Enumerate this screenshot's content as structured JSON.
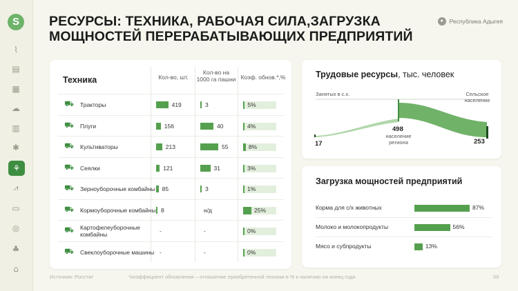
{
  "sidebar": {
    "logo": "S",
    "icons": [
      "map-icon",
      "layout-icon",
      "grid-icon",
      "weather-icon",
      "calendar-icon",
      "bug-icon",
      "agriculture-icon",
      "chart-icon",
      "document-icon",
      "globe-icon",
      "plant-icon",
      "bank-icon"
    ]
  },
  "header": {
    "title_line1": "РЕСУРСЫ: ТЕХНИКА, РАБОЧАЯ СИЛА,ЗАГРУЗКА",
    "title_line2": "МОЩНОСТЕЙ ПЕРЕРАБАТЫВАЮЩИХ ПРЕДПРИЯТИЙ",
    "region": "Республика Адыгея"
  },
  "equipment": {
    "title": "Техника",
    "col_count": "Кол-во, шт.",
    "col_per1000": "Кол-во на 1000 га пашни",
    "col_renewal": "Коэф. обнов.*,%",
    "rows": [
      {
        "icon": "tractor-icon",
        "label": "Тракторы",
        "count": "419",
        "count_frac": 0.44,
        "per1000": "3",
        "per1000_frac": 0.05,
        "renewal": "5%",
        "renewal_pct": 5
      },
      {
        "icon": "plow-icon",
        "label": "Плуги",
        "count": "156",
        "count_frac": 0.17,
        "per1000": "40",
        "per1000_frac": 0.73,
        "renewal": "4%",
        "renewal_pct": 4
      },
      {
        "icon": "cultivator-icon",
        "label": "Культиваторы",
        "count": "213",
        "count_frac": 0.22,
        "per1000": "55",
        "per1000_frac": 1.0,
        "renewal": "8%",
        "renewal_pct": 8
      },
      {
        "icon": "seeder-icon",
        "label": "Сеялки",
        "count": "121",
        "count_frac": 0.13,
        "per1000": "31",
        "per1000_frac": 0.56,
        "renewal": "3%",
        "renewal_pct": 3
      },
      {
        "icon": "grain-harvester-icon",
        "label": "Зерноуборочные комбайны",
        "count": "85",
        "count_frac": 0.09,
        "per1000": "3",
        "per1000_frac": 0.05,
        "renewal": "1%",
        "renewal_pct": 1
      },
      {
        "icon": "forage-harvester-icon",
        "label": "Кормоуборочные комбайны",
        "count": "8",
        "count_frac": 0.01,
        "per1000": "н/д",
        "per1000_frac": 0,
        "renewal": "25%",
        "renewal_pct": 25
      },
      {
        "icon": "potato-harvester-icon",
        "label": "Картофелеуборочные комбайны",
        "count": "-",
        "count_frac": 0,
        "per1000": "-",
        "per1000_frac": 0,
        "renewal": "0%",
        "renewal_pct": 0
      },
      {
        "icon": "beet-harvester-icon",
        "label": "Свеклоуборочные машины",
        "count": "-",
        "count_frac": 0,
        "per1000": "-",
        "per1000_frac": 0,
        "renewal": "0%",
        "renewal_pct": 0
      }
    ]
  },
  "labor": {
    "title_bold": "Трудовые ресурсы",
    "title_rest": ", тыс. человек",
    "employed_label": "Занятых в с.х.",
    "rural_label": "Сельское население",
    "center_value": "498",
    "center_label": "население региона",
    "employed_value": "17",
    "rural_value": "253"
  },
  "load": {
    "title": "Загрузка мощностей предприятий",
    "rows": [
      {
        "label": "Корма для с/х животных",
        "pct": 87,
        "text": "87%"
      },
      {
        "label": "Молоко и молокопродукты",
        "pct": 56,
        "text": "56%"
      },
      {
        "label": "Мясо и субпродукты",
        "pct": 13,
        "text": "13%"
      }
    ]
  },
  "footer": {
    "source": "Источник: Росстат",
    "note": "*коэффициент обновления – отношение приобретенной техники в % к наличию на конец года",
    "page": "09"
  }
}
